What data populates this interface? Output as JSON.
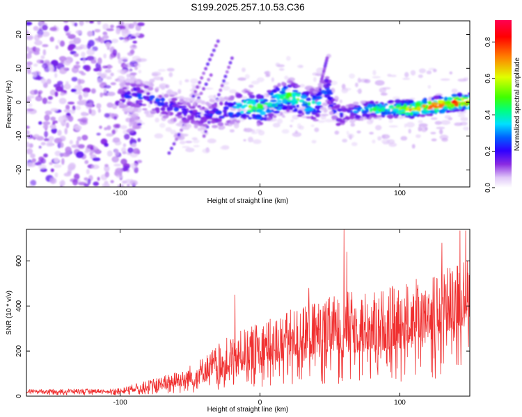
{
  "title": "S199.2025.257.10.53.C36",
  "colors": {
    "snr_line": "#f03030",
    "frame": "#000000",
    "background": "#ffffff",
    "cold": "#c9a3ee",
    "colormap": [
      "#ffffff",
      "#e0c8f8",
      "#8a2be2",
      "#3000ff",
      "#0060ff",
      "#00e0ff",
      "#00ff80",
      "#40ff00",
      "#e0ff00",
      "#ff8000",
      "#ff0000",
      "#ff0050"
    ]
  },
  "chart_data": [
    {
      "type": "heatmap",
      "title": "S199.2025.257.10.53.C36",
      "xlabel": "Height of straight line (km)",
      "ylabel": "Frequency (Hz)",
      "xlim": [
        -167,
        150
      ],
      "ylim": [
        -25,
        24
      ],
      "xticks": [
        -100,
        0,
        100
      ],
      "yticks": [
        -20,
        -10,
        0,
        10,
        20
      ],
      "colorbar": {
        "label": "Normalized spectral amplitude",
        "range": [
          0.0,
          0.92
        ],
        "ticks": [
          0.0,
          0.2,
          0.4,
          0.6,
          0.8
        ]
      },
      "features": {
        "noise_region_x": [
          -167,
          -95
        ],
        "signal_track": [
          {
            "x": -100,
            "freq": 2,
            "amp": 0.2
          },
          {
            "x": -85,
            "freq": 2,
            "amp": 0.28
          },
          {
            "x": -70,
            "freq": 0,
            "amp": 0.26
          },
          {
            "x": -55,
            "freq": -3,
            "amp": 0.22
          },
          {
            "x": -40,
            "freq": -4,
            "amp": 0.2
          },
          {
            "x": -25,
            "freq": -3,
            "amp": 0.3
          },
          {
            "x": -10,
            "freq": -1,
            "amp": 0.5
          },
          {
            "x": 0,
            "freq": -2,
            "amp": 0.55
          },
          {
            "x": 10,
            "freq": 0,
            "amp": 0.5
          },
          {
            "x": 20,
            "freq": 2,
            "amp": 0.55
          },
          {
            "x": 30,
            "freq": 0,
            "amp": 0.5
          },
          {
            "x": 40,
            "freq": -1,
            "amp": 0.4
          },
          {
            "x": 48,
            "freq": 4,
            "amp": 0.3
          },
          {
            "x": 55,
            "freq": -4,
            "amp": 0.25
          },
          {
            "x": 65,
            "freq": -3,
            "amp": 0.3
          },
          {
            "x": 80,
            "freq": -2,
            "amp": 0.5
          },
          {
            "x": 95,
            "freq": -2,
            "amp": 0.55
          },
          {
            "x": 110,
            "freq": -2,
            "amp": 0.75
          },
          {
            "x": 125,
            "freq": -1,
            "amp": 0.85
          },
          {
            "x": 140,
            "freq": 0,
            "amp": 0.9
          },
          {
            "x": 150,
            "freq": 0,
            "amp": 0.8
          }
        ]
      }
    },
    {
      "type": "line",
      "xlabel": "Height of straight line (km)",
      "ylabel": "SNR (10 * v/v)",
      "xlim": [
        -167,
        150
      ],
      "ylim": [
        0,
        740
      ],
      "xticks": [
        -100,
        0,
        100
      ],
      "yticks": [
        0,
        200,
        400,
        600
      ],
      "series": [
        {
          "name": "SNR",
          "envelope": {
            "x": [
              -167,
              -140,
              -110,
              -100,
              -90,
              -80,
              -70,
              -60,
              -50,
              -40,
              -30,
              -20,
              -10,
              0,
              10,
              20,
              30,
              40,
              50,
              60,
              70,
              80,
              90,
              100,
              110,
              120,
              130,
              140,
              150
            ],
            "low": [
              15,
              15,
              15,
              15,
              20,
              25,
              30,
              40,
              45,
              60,
              80,
              90,
              110,
              130,
              150,
              160,
              170,
              170,
              180,
              185,
              190,
              200,
              200,
              210,
              230,
              250,
              270,
              300,
              330
            ],
            "high": [
              30,
              32,
              32,
              35,
              55,
              70,
              90,
              110,
              140,
              180,
              230,
              280,
              300,
              330,
              350,
              380,
              400,
              420,
              440,
              470,
              460,
              470,
              480,
              500,
              520,
              540,
              560,
              600,
              620
            ]
          },
          "spikes": [
            {
              "x": 60,
              "y": 740
            },
            {
              "x": 62,
              "y": 640
            },
            {
              "x": -18,
              "y": 450
            },
            {
              "x": 35,
              "y": 480
            },
            {
              "x": 130,
              "y": 680
            },
            {
              "x": 143,
              "y": 735
            },
            {
              "x": 147,
              "y": 735
            }
          ]
        }
      ]
    }
  ]
}
